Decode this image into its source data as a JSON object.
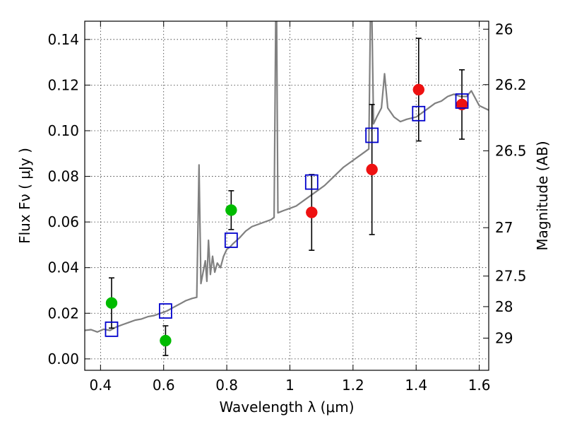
{
  "chart_data": {
    "type": "scatter",
    "xlabel": "Wavelength  λ (μm)",
    "ylabel": "Flux  Fν  ( μJy )",
    "y2label": "Magnitude (AB)",
    "xlim": [
      0.35,
      1.63
    ],
    "ylim": [
      -0.005,
      0.148
    ],
    "grid": true,
    "x_ticks": [
      0.4,
      0.6,
      0.8,
      1.0,
      1.2,
      1.4,
      1.6
    ],
    "x_tick_labels": [
      "0.4",
      "0.6",
      "0.8",
      "1",
      "1.2",
      "1.4",
      "1.6"
    ],
    "y_ticks": [
      0.0,
      0.02,
      0.04,
      0.06,
      0.08,
      0.1,
      0.12,
      0.14
    ],
    "y_tick_labels": [
      "0.00",
      "0.02",
      "0.04",
      "0.06",
      "0.08",
      "0.10",
      "0.12",
      "0.14"
    ],
    "mag_ticks": [
      {
        "label": "26",
        "flux": 0.1445
      },
      {
        "label": "26.2",
        "flux": 0.1202
      },
      {
        "label": "26.5",
        "flux": 0.0912
      },
      {
        "label": "27",
        "flux": 0.0575
      },
      {
        "label": "27.5",
        "flux": 0.0363
      },
      {
        "label": "28",
        "flux": 0.0229
      },
      {
        "label": "29",
        "flux": 0.0091
      }
    ],
    "colors": {
      "spectrum": "#808080",
      "green_points": "#00bb00",
      "red_points": "#ee1111",
      "model_squares": "#0000cc",
      "errorbars": "#000000"
    },
    "spectrum": [
      [
        0.35,
        0.0125
      ],
      [
        0.37,
        0.0128
      ],
      [
        0.39,
        0.0118
      ],
      [
        0.41,
        0.013
      ],
      [
        0.43,
        0.0125
      ],
      [
        0.45,
        0.014
      ],
      [
        0.47,
        0.015
      ],
      [
        0.49,
        0.016
      ],
      [
        0.51,
        0.017
      ],
      [
        0.53,
        0.0175
      ],
      [
        0.55,
        0.0185
      ],
      [
        0.57,
        0.019
      ],
      [
        0.59,
        0.02
      ],
      [
        0.61,
        0.021
      ],
      [
        0.63,
        0.0225
      ],
      [
        0.65,
        0.024
      ],
      [
        0.67,
        0.0255
      ],
      [
        0.69,
        0.0265
      ],
      [
        0.705,
        0.027
      ],
      [
        0.712,
        0.085
      ],
      [
        0.718,
        0.033
      ],
      [
        0.725,
        0.038
      ],
      [
        0.732,
        0.043
      ],
      [
        0.737,
        0.034
      ],
      [
        0.742,
        0.052
      ],
      [
        0.748,
        0.037
      ],
      [
        0.755,
        0.045
      ],
      [
        0.762,
        0.038
      ],
      [
        0.77,
        0.042
      ],
      [
        0.78,
        0.04
      ],
      [
        0.79,
        0.045
      ],
      [
        0.8,
        0.048
      ],
      [
        0.81,
        0.049
      ],
      [
        0.82,
        0.0505
      ],
      [
        0.84,
        0.053
      ],
      [
        0.86,
        0.056
      ],
      [
        0.88,
        0.058
      ],
      [
        0.9,
        0.059
      ],
      [
        0.92,
        0.06
      ],
      [
        0.94,
        0.061
      ],
      [
        0.95,
        0.062
      ],
      [
        0.955,
        0.148
      ],
      [
        0.958,
        0.148
      ],
      [
        0.962,
        0.064
      ],
      [
        0.98,
        0.065
      ],
      [
        1.0,
        0.066
      ],
      [
        1.02,
        0.067
      ],
      [
        1.05,
        0.07
      ],
      [
        1.08,
        0.073
      ],
      [
        1.11,
        0.076
      ],
      [
        1.14,
        0.08
      ],
      [
        1.17,
        0.084
      ],
      [
        1.2,
        0.087
      ],
      [
        1.23,
        0.09
      ],
      [
        1.25,
        0.092
      ],
      [
        1.255,
        0.148
      ],
      [
        1.26,
        0.148
      ],
      [
        1.265,
        0.103
      ],
      [
        1.275,
        0.106
      ],
      [
        1.29,
        0.11
      ],
      [
        1.3,
        0.125
      ],
      [
        1.31,
        0.11
      ],
      [
        1.33,
        0.106
      ],
      [
        1.35,
        0.104
      ],
      [
        1.37,
        0.105
      ],
      [
        1.4,
        0.106
      ],
      [
        1.42,
        0.108
      ],
      [
        1.44,
        0.11
      ],
      [
        1.46,
        0.112
      ],
      [
        1.48,
        0.113
      ],
      [
        1.5,
        0.115
      ],
      [
        1.52,
        0.116
      ],
      [
        1.54,
        0.115
      ],
      [
        1.56,
        0.115
      ],
      [
        1.575,
        0.1175
      ],
      [
        1.6,
        0.111
      ],
      [
        1.63,
        0.109
      ]
    ],
    "series": [
      {
        "marker": "circle-green",
        "points": [
          {
            "x": 0.435,
            "y": 0.0245,
            "err": 0.011
          },
          {
            "x": 0.606,
            "y": 0.008,
            "err": 0.0065
          },
          {
            "x": 0.814,
            "y": 0.0652,
            "err": 0.0085
          }
        ]
      },
      {
        "marker": "circle-red",
        "points": [
          {
            "x": 1.069,
            "y": 0.0642,
            "err": 0.0166
          },
          {
            "x": 1.26,
            "y": 0.083,
            "err": 0.0285
          },
          {
            "x": 1.408,
            "y": 0.118,
            "err": 0.0225
          },
          {
            "x": 1.545,
            "y": 0.1115,
            "err": 0.0152
          }
        ]
      },
      {
        "marker": "square-blue",
        "points": [
          {
            "x": 0.435,
            "y": 0.013
          },
          {
            "x": 0.606,
            "y": 0.021
          },
          {
            "x": 0.814,
            "y": 0.052
          },
          {
            "x": 1.069,
            "y": 0.0775
          },
          {
            "x": 1.26,
            "y": 0.098
          },
          {
            "x": 1.408,
            "y": 0.1075
          },
          {
            "x": 1.545,
            "y": 0.113
          }
        ]
      }
    ]
  }
}
